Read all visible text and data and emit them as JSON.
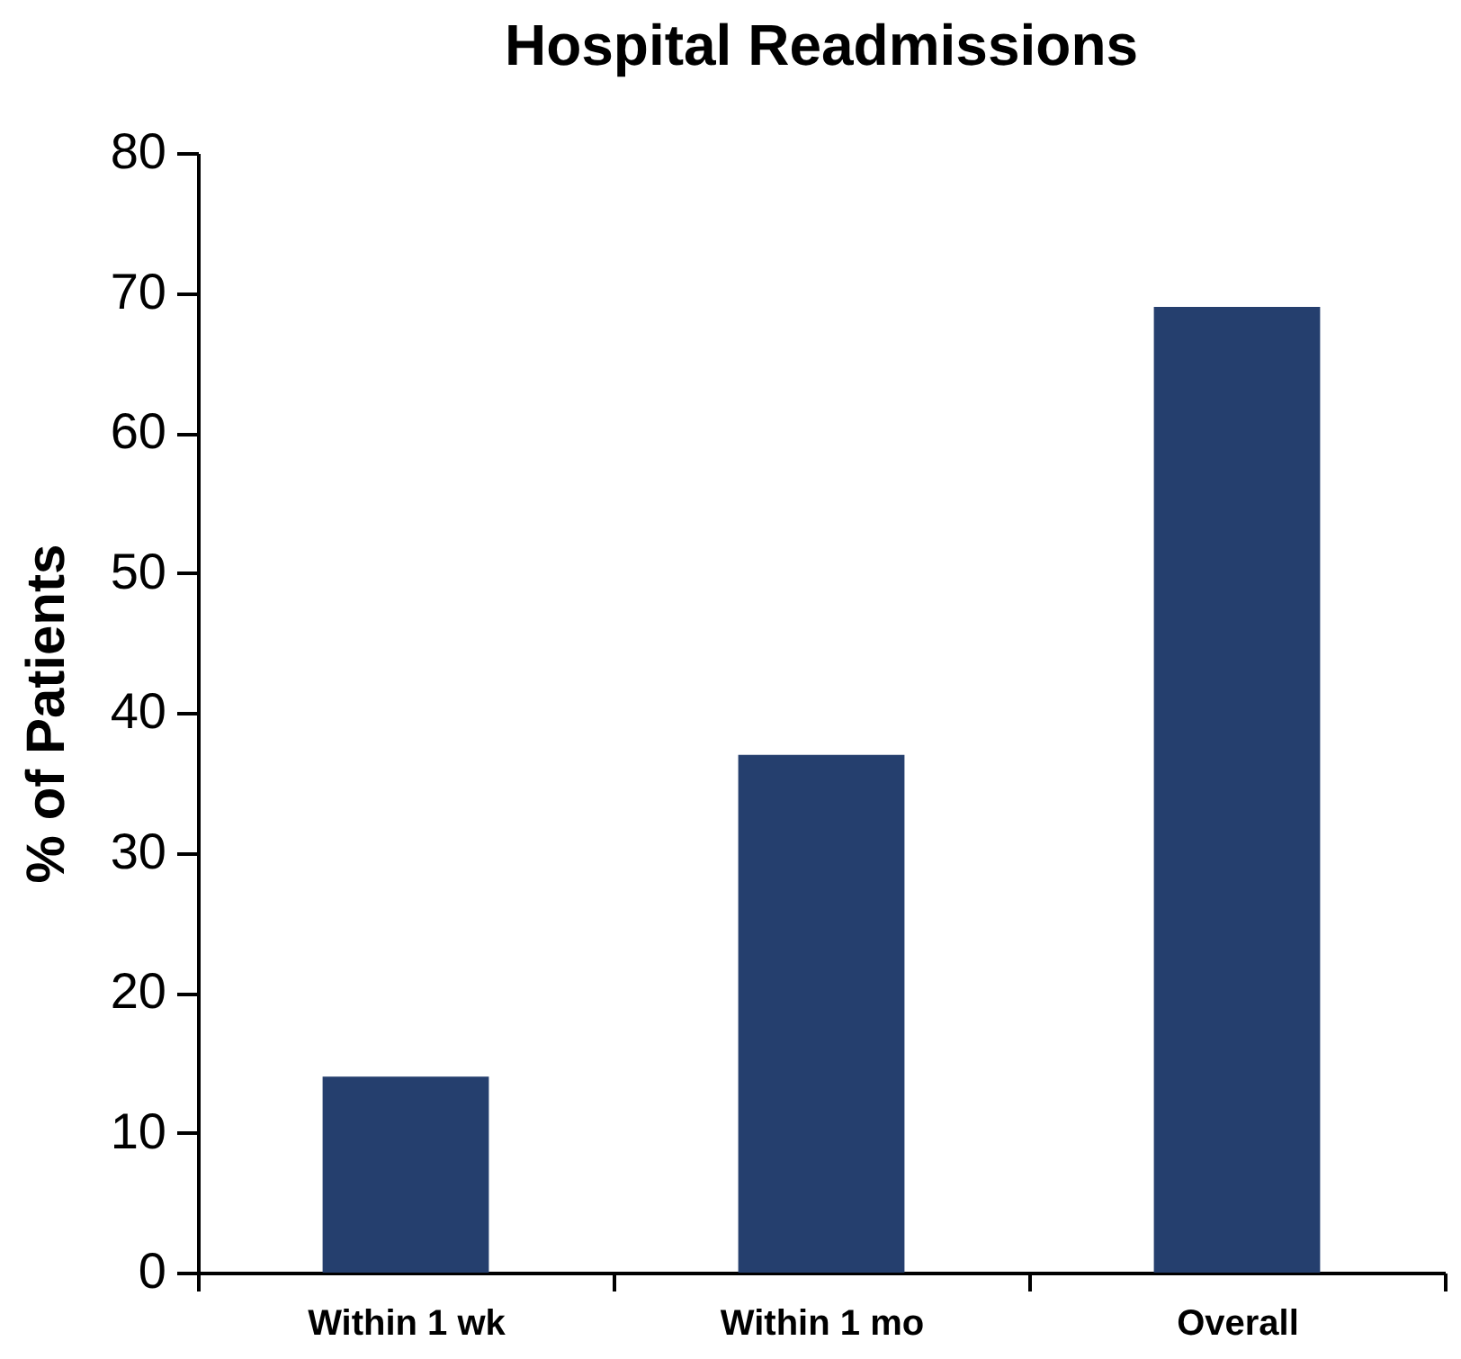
{
  "chart_data": {
    "type": "bar",
    "title": "Hospital Readmissions",
    "ylabel": "% of Patients",
    "categories": [
      "Within 1 wk",
      "Within 1 mo",
      "Overall"
    ],
    "values": [
      14,
      37,
      69
    ],
    "color": "#253f6e",
    "ylim": [
      0,
      80
    ],
    "yticks": [
      0,
      10,
      20,
      30,
      40,
      50,
      60,
      70,
      80
    ],
    "grid": false
  }
}
